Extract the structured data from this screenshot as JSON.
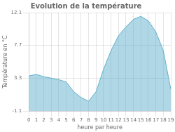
{
  "chart_data": {
    "type": "area",
    "title": "Evolution de la température",
    "xlabel": "heure par heure",
    "ylabel": "Température en °C",
    "x": [
      0,
      1,
      2,
      3,
      4,
      5,
      6,
      7,
      8,
      9,
      10,
      11,
      12,
      13,
      14,
      15,
      16,
      17,
      18,
      19
    ],
    "values": [
      3.6,
      3.8,
      3.5,
      3.3,
      3.1,
      2.8,
      1.5,
      0.7,
      0.2,
      1.5,
      4.5,
      7.0,
      9.0,
      10.2,
      11.2,
      11.6,
      11.0,
      9.5,
      7.0,
      1.8
    ],
    "color": "#60b0cc",
    "xlim": [
      0,
      19
    ],
    "xticks": [
      0,
      1,
      2,
      3,
      4,
      5,
      6,
      7,
      8,
      9,
      10,
      11,
      12,
      13,
      14,
      15,
      16,
      17,
      18,
      19
    ],
    "ylim": [
      -1.1,
      12.1
    ],
    "yticks": [
      -1.1,
      3.3,
      7.7,
      12.1
    ],
    "grid": true
  }
}
